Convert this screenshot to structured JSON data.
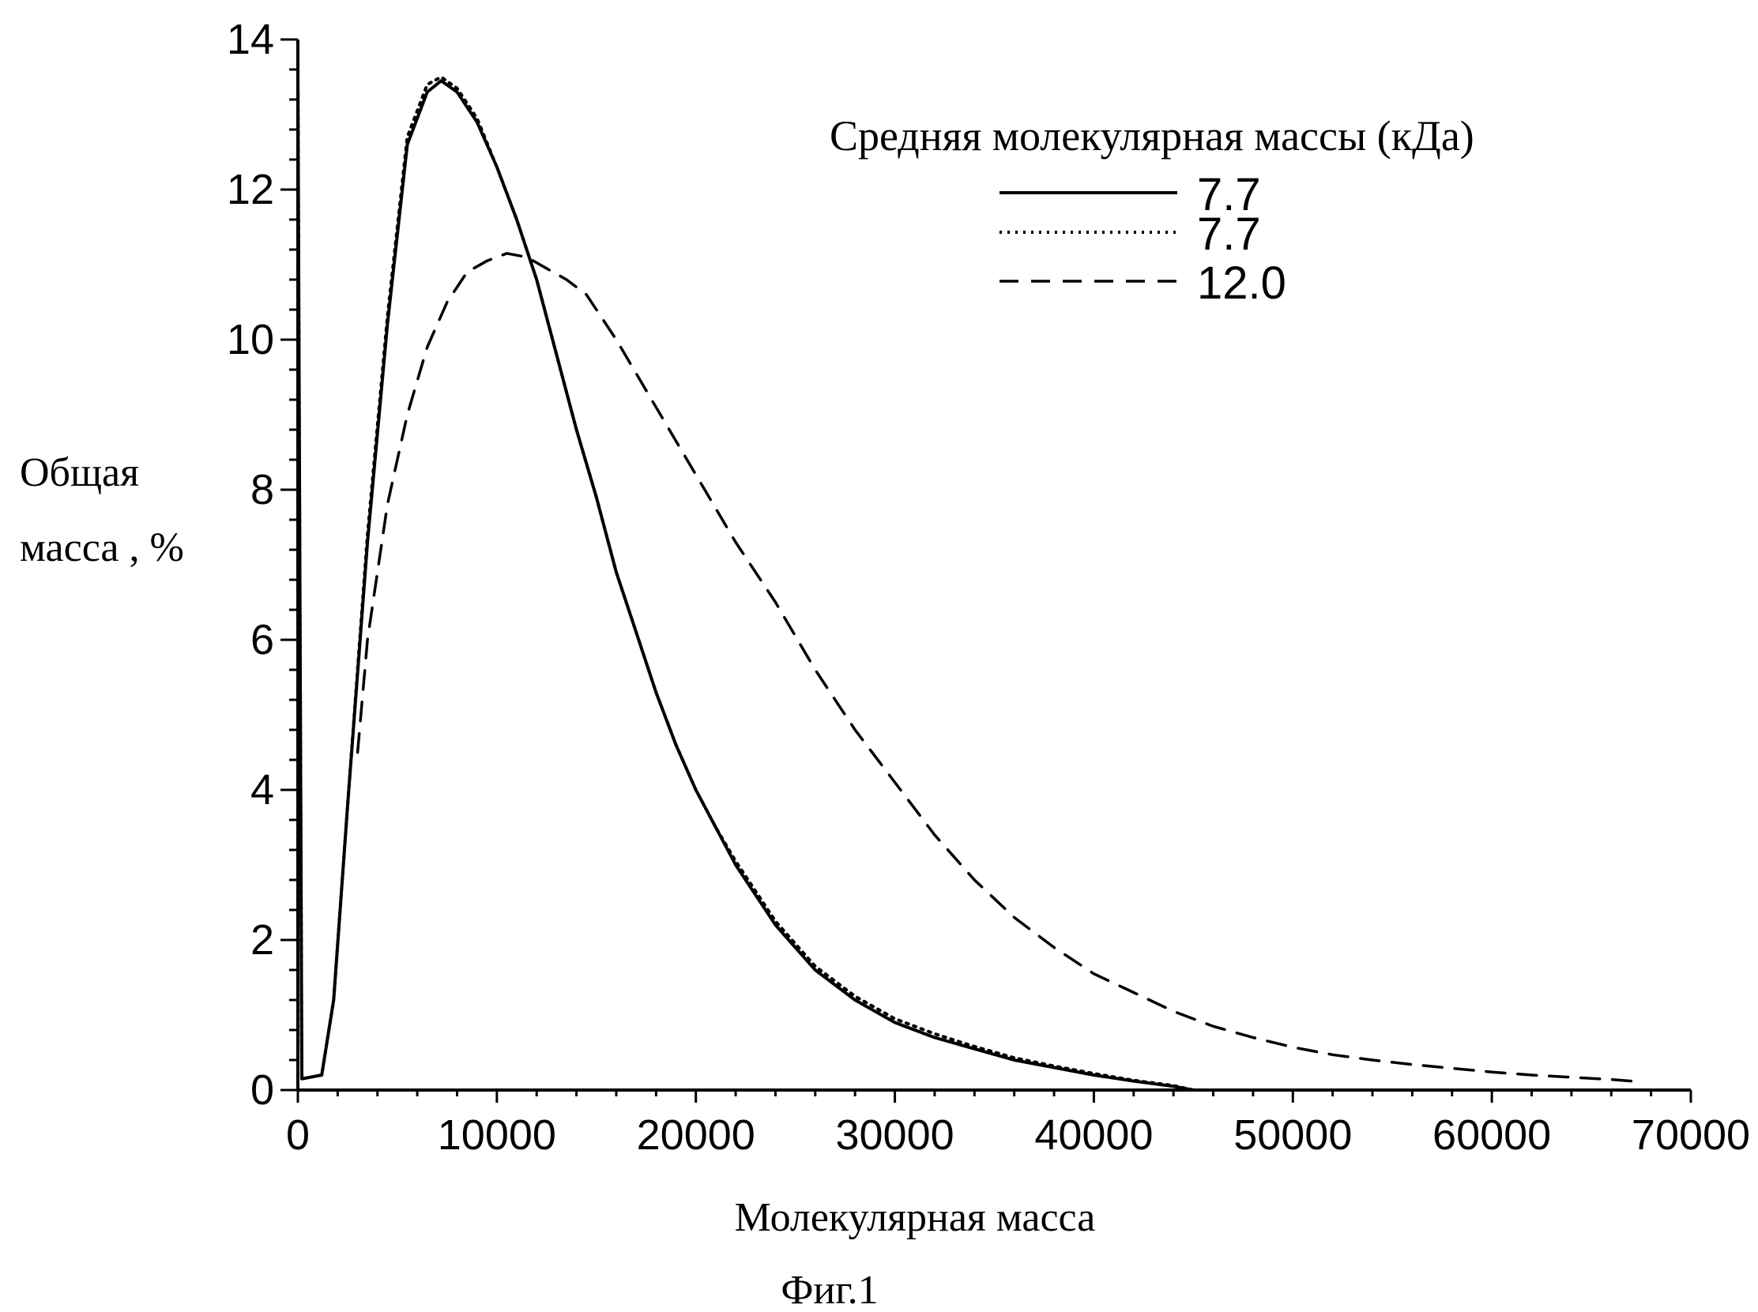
{
  "chart_data": {
    "type": "line",
    "title": "",
    "xlabel": "Молекулярная масса",
    "ylabel_lines": [
      "Общая",
      "масса , %"
    ],
    "caption": "Фиг.1",
    "xlim": [
      0,
      70000
    ],
    "ylim": [
      0,
      14
    ],
    "x_ticks": [
      0,
      10000,
      20000,
      30000,
      40000,
      50000,
      60000,
      70000
    ],
    "y_ticks": [
      0,
      2,
      4,
      6,
      8,
      10,
      12,
      14
    ],
    "x_tick_labels": [
      "0",
      "10000",
      "20000",
      "30000",
      "40000",
      "50000",
      "60000",
      "70000"
    ],
    "y_tick_labels": [
      "0",
      "2",
      "4",
      "6",
      "8",
      "10",
      "12",
      "14"
    ],
    "grid": false,
    "legend": {
      "title": "Средняя молекулярная массы (кДа)",
      "placement": "top-right"
    },
    "series": [
      {
        "name": "7.7",
        "style": "solid",
        "color": "#000000",
        "x": [
          0,
          200,
          1200,
          1800,
          2500,
          3500,
          4500,
          5500,
          6500,
          7200,
          8000,
          9000,
          10000,
          11000,
          12000,
          13000,
          14000,
          15000,
          16000,
          17000,
          18000,
          19000,
          20000,
          21000,
          22000,
          23000,
          24000,
          25000,
          26000,
          27000,
          28000,
          29000,
          30000,
          32000,
          34000,
          36000,
          38000,
          40000,
          42000,
          44000,
          45000
        ],
        "y": [
          13.6,
          0.15,
          0.2,
          1.2,
          3.8,
          7.3,
          10.2,
          12.6,
          13.3,
          13.45,
          13.3,
          12.9,
          12.3,
          11.6,
          10.8,
          9.8,
          8.8,
          7.9,
          6.9,
          6.1,
          5.3,
          4.6,
          4.0,
          3.5,
          3.0,
          2.6,
          2.2,
          1.9,
          1.6,
          1.4,
          1.2,
          1.05,
          0.9,
          0.7,
          0.55,
          0.4,
          0.3,
          0.2,
          0.12,
          0.05,
          0.0
        ]
      },
      {
        "name": "7.7",
        "style": "dotted",
        "color": "#000000",
        "x": [
          0,
          200,
          1200,
          1800,
          2500,
          3500,
          4500,
          5500,
          6500,
          7200,
          8000,
          9000,
          10000,
          11000,
          12000,
          13000,
          14000,
          15000,
          16000,
          17000,
          18000,
          19000,
          20000,
          21000,
          22000,
          23000,
          24000,
          25000,
          26000,
          27000,
          28000,
          29000,
          30000,
          32000,
          34000,
          36000,
          38000,
          40000,
          42000,
          44000,
          45000
        ],
        "y": [
          13.6,
          0.15,
          0.2,
          1.2,
          3.8,
          7.4,
          10.3,
          12.7,
          13.4,
          13.5,
          13.35,
          12.95,
          12.3,
          11.6,
          10.8,
          9.8,
          8.8,
          7.9,
          6.9,
          6.1,
          5.3,
          4.6,
          4.0,
          3.5,
          3.05,
          2.65,
          2.25,
          1.95,
          1.65,
          1.45,
          1.25,
          1.1,
          0.95,
          0.75,
          0.58,
          0.43,
          0.32,
          0.22,
          0.13,
          0.06,
          0.0
        ]
      },
      {
        "name": "12.0",
        "style": "dashed",
        "color": "#000000",
        "x": [
          3000,
          3500,
          4500,
          5500,
          6500,
          7500,
          8500,
          9500,
          10500,
          11500,
          12500,
          13500,
          14500,
          16000,
          18000,
          20000,
          22000,
          24000,
          26000,
          28000,
          30000,
          32000,
          34000,
          36000,
          38000,
          40000,
          42000,
          44000,
          46000,
          48000,
          50000,
          52000,
          54000,
          56000,
          58000,
          60000,
          62000,
          64000,
          66000,
          67000
        ],
        "y": [
          4.5,
          6.0,
          7.8,
          9.0,
          9.9,
          10.5,
          10.9,
          11.05,
          11.15,
          11.1,
          10.95,
          10.8,
          10.6,
          10.0,
          9.1,
          8.2,
          7.3,
          6.5,
          5.6,
          4.8,
          4.1,
          3.4,
          2.8,
          2.3,
          1.9,
          1.55,
          1.3,
          1.05,
          0.85,
          0.7,
          0.57,
          0.47,
          0.4,
          0.34,
          0.29,
          0.24,
          0.2,
          0.17,
          0.14,
          0.12
        ]
      }
    ]
  }
}
